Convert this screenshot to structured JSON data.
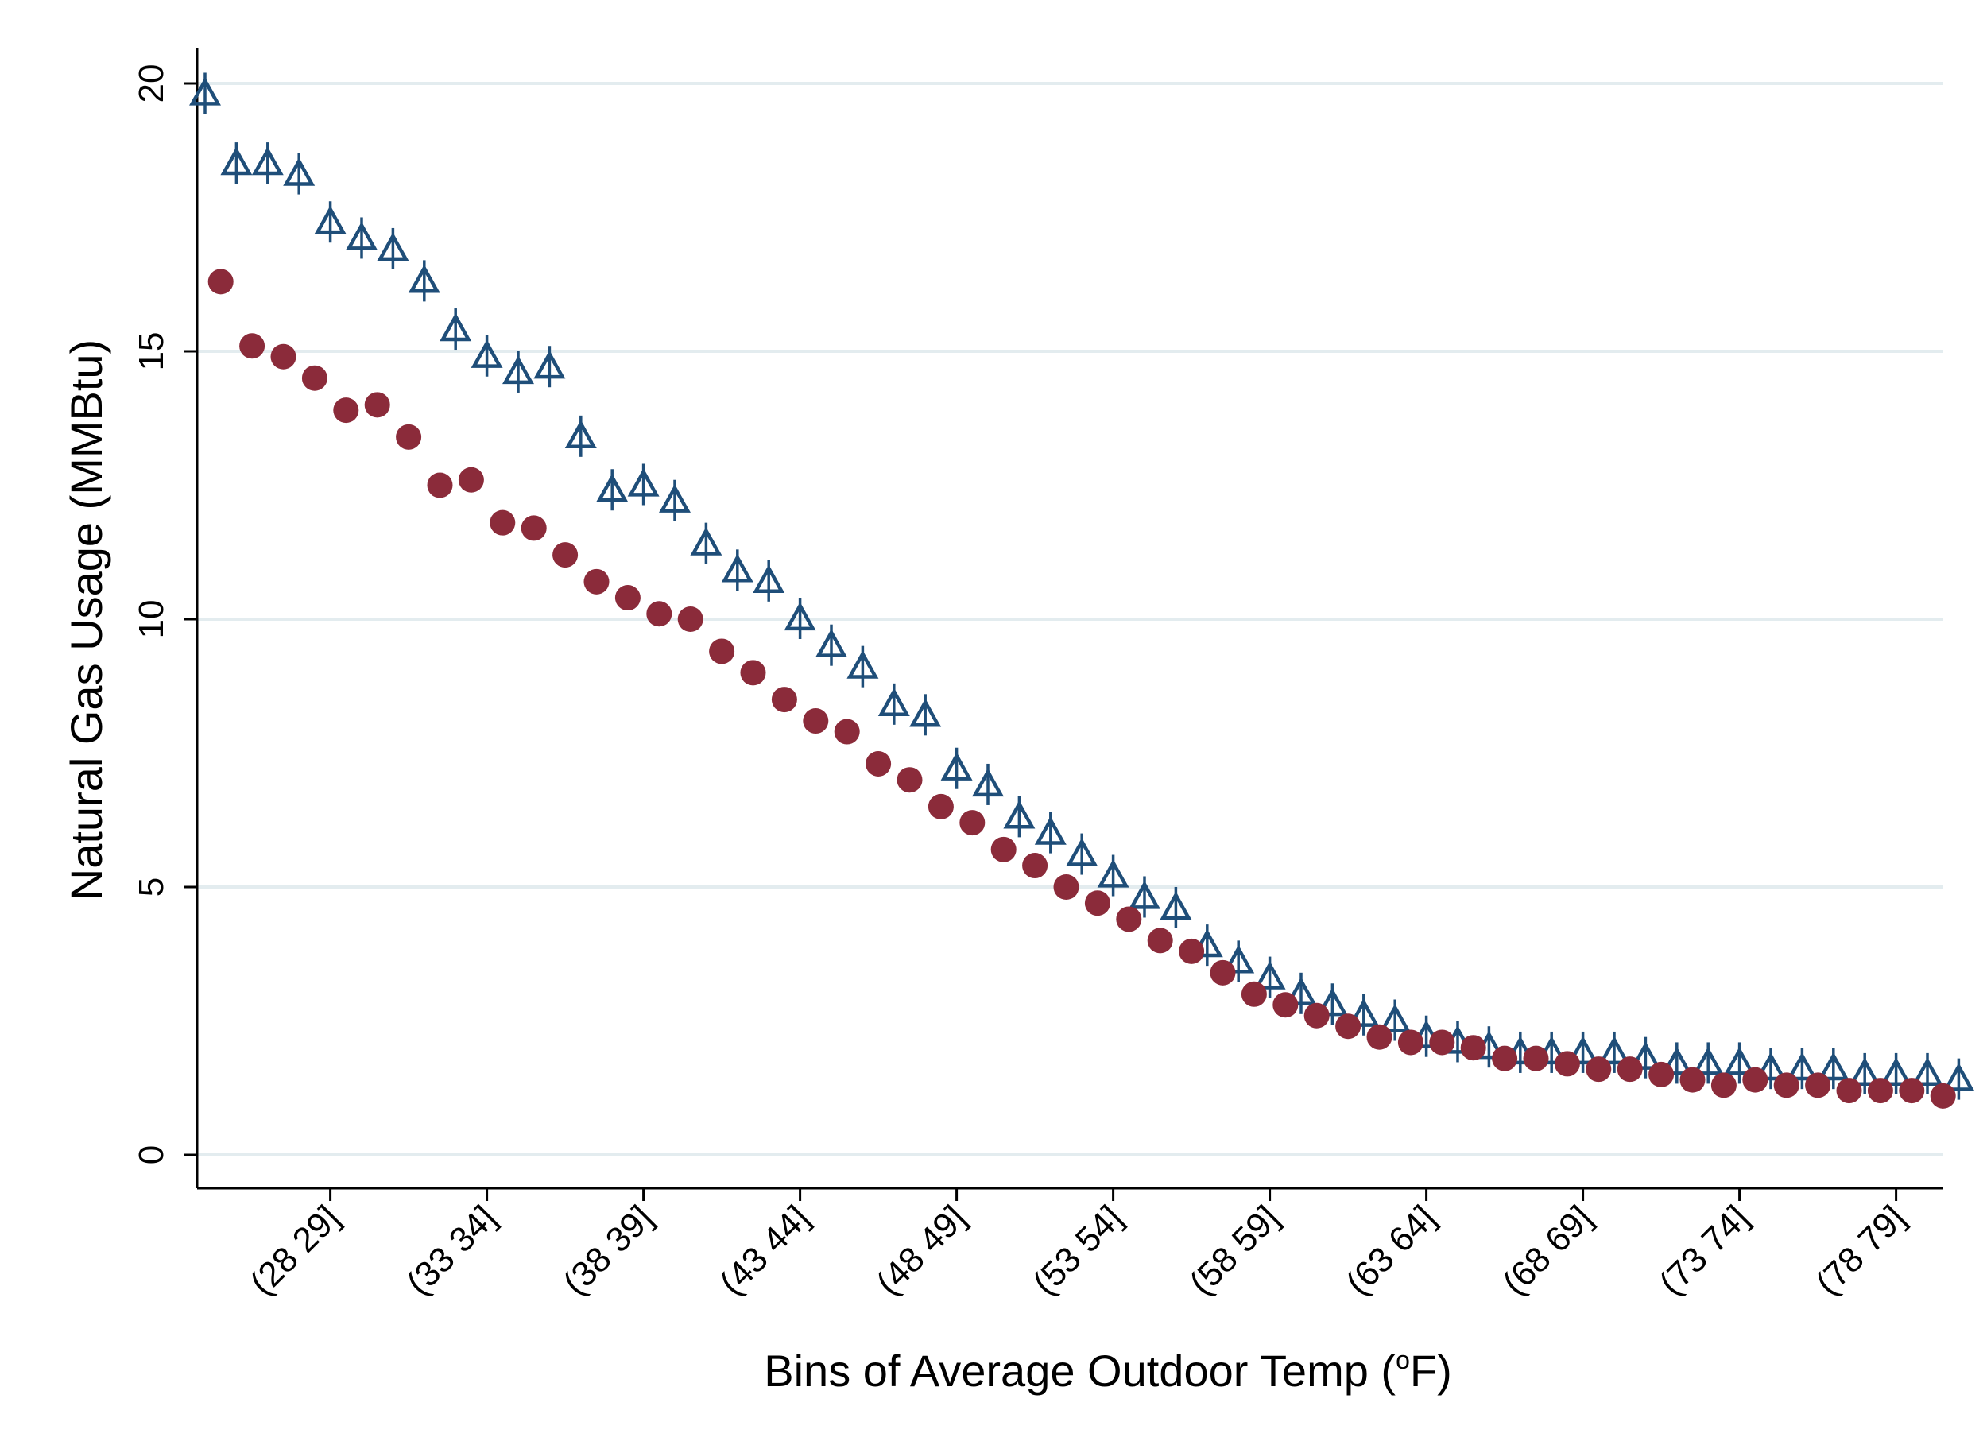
{
  "chart_data": {
    "type": "scatter",
    "title": "",
    "xlabel_main": "Bins of Average Outdoor Temp (",
    "xlabel_sup": "o",
    "xlabel_tail": "F)",
    "ylabel": "Natural Gas Usage (MMBtu)",
    "ylim": [
      0,
      20
    ],
    "y_ticks": [
      0,
      5,
      10,
      15,
      20
    ],
    "grid": true,
    "x_tick_labels": [
      {
        "label": "(28 29]",
        "index": 4
      },
      {
        "label": "(33 34]",
        "index": 9
      },
      {
        "label": "(38 39]",
        "index": 14
      },
      {
        "label": "(43 44]",
        "index": 19
      },
      {
        "label": "(48 49]",
        "index": 24
      },
      {
        "label": "(53 54]",
        "index": 29
      },
      {
        "label": "(58 59]",
        "index": 34
      },
      {
        "label": "(63 64]",
        "index": 39
      },
      {
        "label": "(68 69]",
        "index": 44
      },
      {
        "label": "(73 74]",
        "index": 49
      },
      {
        "label": "(78 79]",
        "index": 54
      }
    ],
    "colors": {
      "series_a": "#1f4e79",
      "series_b": "#8b2b3a"
    },
    "series": [
      {
        "marker": "hollow-triangle",
        "color": "#1f4e79",
        "values": [
          19.8,
          18.5,
          18.5,
          18.3,
          17.4,
          17.1,
          16.9,
          16.3,
          15.4,
          14.9,
          14.6,
          14.7,
          13.4,
          12.4,
          12.5,
          12.2,
          11.4,
          10.9,
          10.7,
          10.0,
          9.5,
          9.1,
          8.4,
          8.2,
          7.2,
          6.9,
          6.3,
          6.0,
          5.6,
          5.2,
          4.8,
          4.6,
          3.9,
          3.6,
          3.3,
          3.0,
          2.8,
          2.6,
          2.5,
          2.2,
          2.1,
          2.0,
          1.9,
          1.9,
          1.9,
          1.9,
          1.8,
          1.7,
          1.7,
          1.7,
          1.6,
          1.6,
          1.6,
          1.5,
          1.5,
          1.5,
          1.4
        ],
        "x_offset": 0.0
      },
      {
        "marker": "filled-circle",
        "color": "#8b2b3a",
        "values": [
          16.3,
          15.1,
          14.9,
          14.5,
          13.9,
          14.0,
          13.4,
          12.5,
          12.6,
          11.8,
          11.7,
          11.2,
          10.7,
          10.4,
          10.1,
          10.0,
          9.4,
          9.0,
          8.5,
          8.1,
          7.9,
          7.3,
          7.0,
          6.5,
          6.2,
          5.7,
          5.4,
          5.0,
          4.7,
          4.4,
          4.0,
          3.8,
          3.4,
          3.0,
          2.8,
          2.6,
          2.4,
          2.2,
          2.1,
          2.1,
          2.0,
          1.8,
          1.8,
          1.7,
          1.6,
          1.6,
          1.5,
          1.4,
          1.3,
          1.4,
          1.3,
          1.3,
          1.2,
          1.2,
          1.2,
          1.1
        ],
        "x_offset": 0.5
      }
    ]
  }
}
